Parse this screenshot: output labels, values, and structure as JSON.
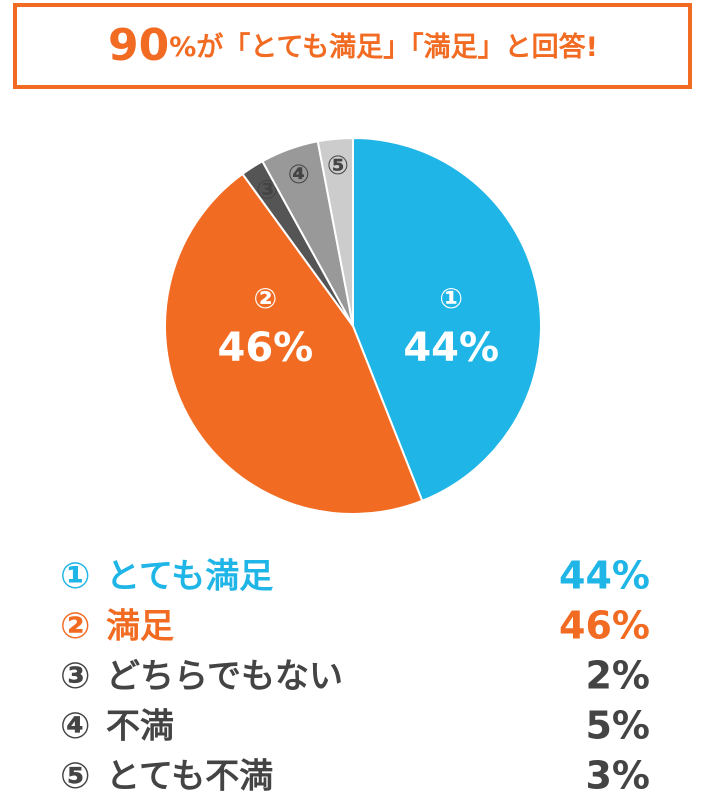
{
  "chart_data": {
    "type": "pie",
    "title": {
      "emphasis": "90",
      "rest": "%が「とても満足」「満足」と回答!"
    },
    "markers": [
      "①",
      "②",
      "③",
      "④",
      "⑤"
    ],
    "categories": [
      "とても満足",
      "満足",
      "どちらでもない",
      "不満",
      "とても不満"
    ],
    "values": [
      44,
      46,
      2,
      5,
      3
    ],
    "value_labels": [
      "44%",
      "46%",
      "2%",
      "5%",
      "3%"
    ],
    "colors": [
      "#1fb5e6",
      "#f26b22",
      "#555555",
      "#999999",
      "#cccccc"
    ],
    "legend_colors": [
      "#1fb5e6",
      "#f26b22",
      "#444444",
      "#444444",
      "#444444"
    ]
  }
}
